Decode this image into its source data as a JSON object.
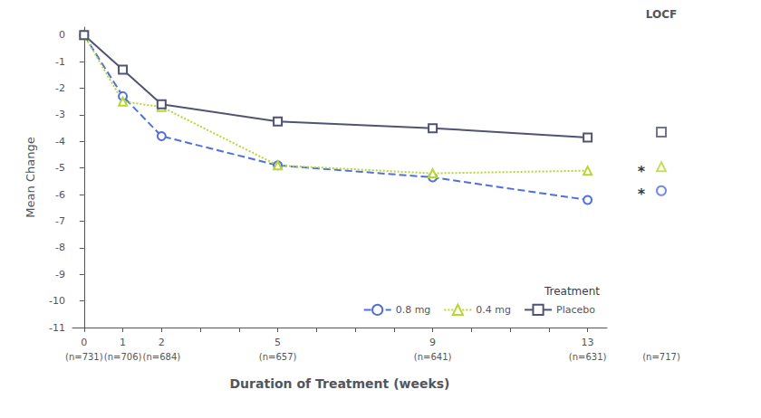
{
  "chart_data": {
    "type": "line",
    "xlabel": "Duration of Treatment (weeks)",
    "ylabel": "Mean Change",
    "xlim": [
      -0.3,
      13.5
    ],
    "ylim": [
      -11,
      0.3
    ],
    "xticks": [
      0,
      1,
      2,
      5,
      9,
      13
    ],
    "x_sublabels": [
      "(n=731)",
      "(n=706)",
      "(n=684)",
      "(n=657)",
      "(n=641)",
      "(n=631)"
    ],
    "minor_xticks": [
      3,
      4,
      6,
      7,
      8,
      10,
      11,
      12
    ],
    "yticks": [
      0,
      -1,
      -2,
      -3,
      -4,
      -5,
      -6,
      -7,
      -8,
      -9,
      -10,
      -11
    ],
    "x": [
      0,
      1,
      2,
      5,
      9,
      13
    ],
    "series": [
      {
        "name": "0.8 mg",
        "values": [
          0,
          -2.3,
          -3.8,
          -4.9,
          -5.35,
          -6.2
        ],
        "locf": -5.85,
        "marker": "circle",
        "line_style": "dashed"
      },
      {
        "name": "0.4 mg",
        "values": [
          0,
          -2.5,
          -2.7,
          -4.9,
          -5.2,
          -5.1
        ],
        "locf": -4.95,
        "marker": "triangle",
        "line_style": "dotted"
      },
      {
        "name": "Placebo",
        "values": [
          0,
          -1.3,
          -2.6,
          -3.25,
          -3.5,
          -3.85
        ],
        "locf": -3.65,
        "marker": "square",
        "line_style": "solid"
      }
    ],
    "locf_label": "LOCF",
    "locf_sublabel": "(n=717)",
    "asterisks": [
      {
        "text": "*",
        "y": -5.88
      },
      {
        "text": "*",
        "y": -5.02
      }
    ],
    "legend": "lower right",
    "legend_title": "Treatment",
    "grid": false
  }
}
